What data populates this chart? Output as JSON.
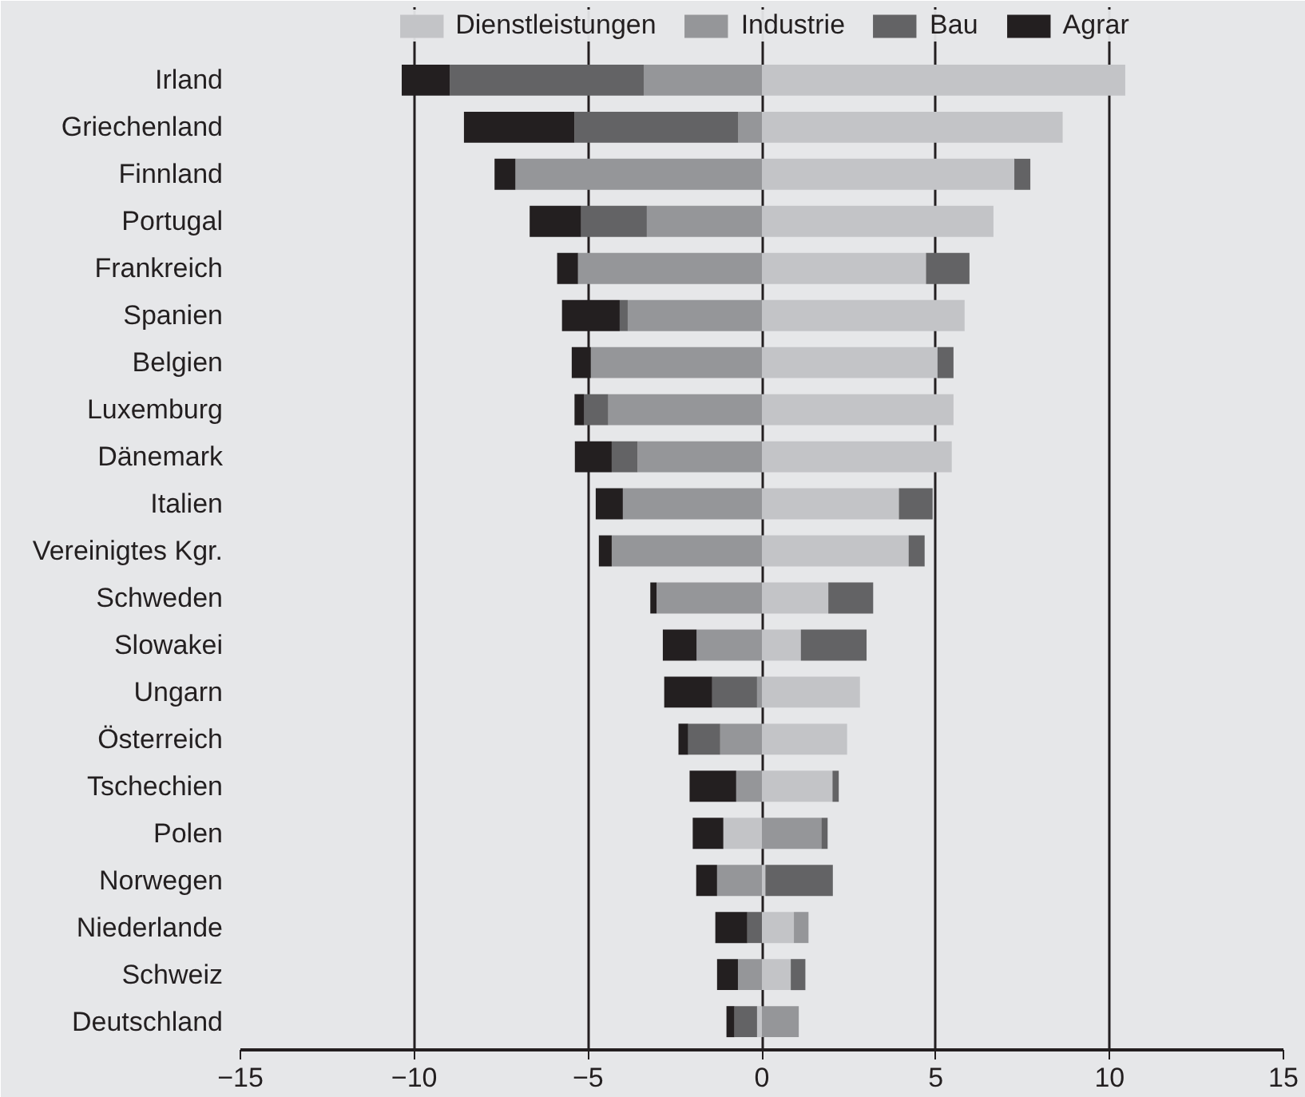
{
  "chart_data": {
    "type": "bar",
    "stacked": true,
    "orientation": "horizontal",
    "categories": [
      "Irland",
      "Griechenland",
      "Finnland",
      "Portugal",
      "Frankreich",
      "Spanien",
      "Belgien",
      "Luxemburg",
      "Dänemark",
      "Italien",
      "Vereinigtes Kgr.",
      "Schweden",
      "Slowakei",
      "Ungarn",
      "Österreich",
      "Tschechien",
      "Polen",
      "Norwegen",
      "Niederlande",
      "Schweiz",
      "Deutschland"
    ],
    "series": [
      {
        "name": "Dienstleistungen",
        "color": "#c3c4c7",
        "values": [
          10.45,
          8.65,
          7.26,
          6.66,
          4.72,
          5.83,
          5.05,
          5.51,
          5.46,
          3.94,
          4.22,
          1.91,
          1.12,
          2.82,
          2.45,
          2.03,
          -1.11,
          0.1,
          0.92,
          0.83,
          -0.14
        ]
      },
      {
        "name": "Industrie",
        "color": "#959699",
        "values": [
          -3.4,
          -0.68,
          -7.09,
          -3.31,
          -5.29,
          -3.86,
          -4.92,
          -4.42,
          -3.58,
          -4.0,
          -4.32,
          -3.03,
          -1.88,
          -0.14,
          -1.2,
          -0.74,
          1.71,
          -1.29,
          0.42,
          -0.69,
          1.06
        ]
      },
      {
        "name": "Bau",
        "color": "#636365",
        "values": [
          -5.58,
          -4.71,
          0.46,
          -1.89,
          1.25,
          -0.23,
          0.46,
          -0.69,
          -0.74,
          0.97,
          0.46,
          1.29,
          1.89,
          -1.29,
          -0.92,
          0.18,
          0.18,
          1.94,
          -0.42,
          0.42,
          -0.65
        ]
      },
      {
        "name": "Agrar",
        "color": "#231f20",
        "values": [
          -1.38,
          -3.18,
          -0.6,
          -1.48,
          -0.6,
          -1.66,
          -0.55,
          -0.28,
          -1.06,
          -0.78,
          -0.37,
          -0.18,
          -0.97,
          -1.38,
          -0.28,
          -1.34,
          -0.88,
          -0.6,
          -0.92,
          -0.6,
          -0.23
        ]
      }
    ],
    "xlim": [
      -15,
      15
    ],
    "xticks": [
      {
        "value": -15,
        "label": "−15"
      },
      {
        "value": -10,
        "label": "−10"
      },
      {
        "value": -5,
        "label": "−5"
      },
      0,
      5,
      10,
      15
    ],
    "grid": "x",
    "legend": "top"
  }
}
